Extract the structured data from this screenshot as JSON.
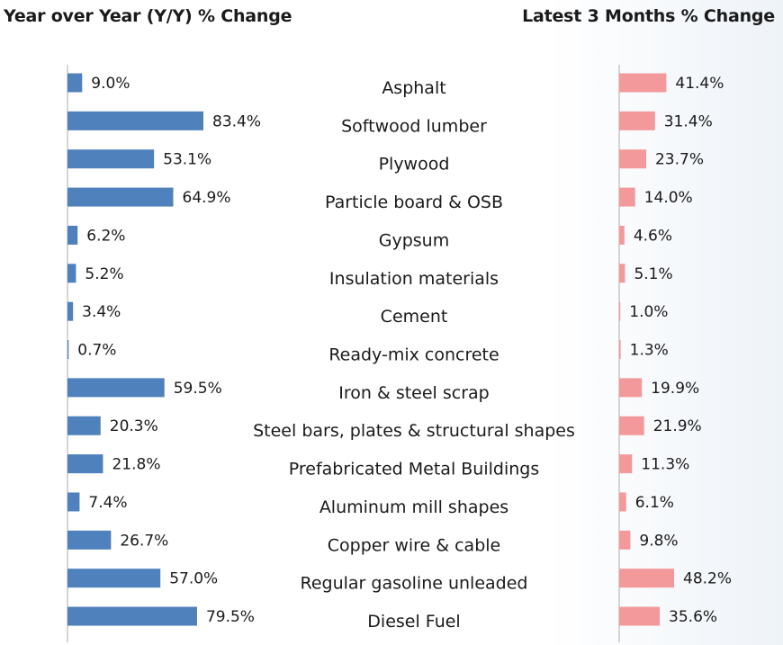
{
  "chart_data": {
    "type": "bar",
    "categories": [
      "Asphalt",
      "Softwood lumber",
      "Plywood",
      "Particle board & OSB",
      "Gypsum",
      "Insulation materials",
      "Cement",
      "Ready-mix concrete",
      "Iron & steel scrap",
      "Steel bars, plates & structural shapes",
      "Prefabricated Metal Buildings",
      "Aluminum mill shapes",
      "Copper wire & cable",
      "Regular gasoline unleaded",
      "Diesel Fuel"
    ],
    "series": [
      {
        "name": "Year over Year (Y/Y) % Change",
        "values": [
          9.0,
          83.4,
          53.1,
          64.9,
          6.2,
          5.2,
          3.4,
          0.7,
          59.5,
          20.3,
          21.8,
          7.4,
          26.7,
          57.0,
          79.5
        ],
        "labels": [
          "9.0%",
          "83.4%",
          "53.1%",
          "64.9%",
          "6.2%",
          "5.2%",
          "3.4%",
          "0.7%",
          "59.5%",
          "20.3%",
          "21.8%",
          "7.4%",
          "26.7%",
          "57.0%",
          "79.5%"
        ],
        "color": "#4f81bd"
      },
      {
        "name": "Latest 3 Months % Change",
        "values": [
          41.4,
          31.4,
          23.7,
          14.0,
          4.6,
          5.1,
          1.0,
          1.3,
          19.9,
          21.9,
          11.3,
          6.1,
          9.8,
          48.2,
          35.6
        ],
        "labels": [
          "41.4%",
          "31.4%",
          "23.7%",
          "14.0%",
          "4.6%",
          "5.1%",
          "1.0%",
          "1.3%",
          "19.9%",
          "21.9%",
          "11.3%",
          "6.1%",
          "9.8%",
          "48.2%",
          "35.6%"
        ],
        "color": "#f4999b"
      }
    ],
    "value_axes": {
      "left_max": 83.4,
      "right_max": 48.2
    },
    "grid": false,
    "legend": "none"
  }
}
